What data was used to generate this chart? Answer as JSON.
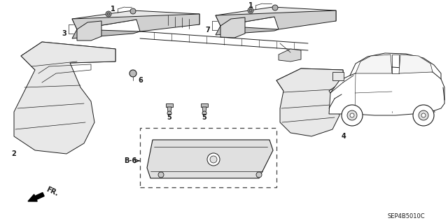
{
  "bg_color": "#ffffff",
  "line_color": "#1a1a1a",
  "diagram_code": "SEP4B5010C",
  "lw": 0.7,
  "fig_w": 6.4,
  "fig_h": 3.19,
  "dpi": 100
}
